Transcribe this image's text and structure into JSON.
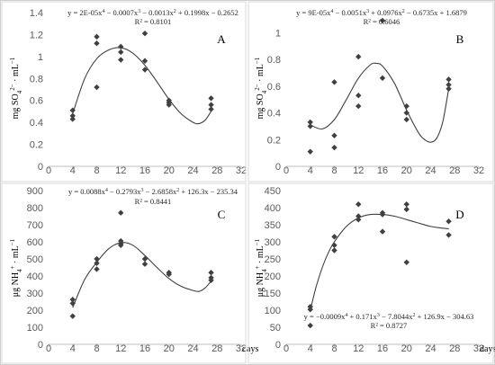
{
  "chart_data": [
    {
      "type": "scatter",
      "panel_label": "A",
      "ylabel": "mg SO42− · mL−1",
      "ylabel_parts": [
        "mg SO",
        "4",
        "2−",
        " · mL",
        "−1"
      ],
      "xlabel": "",
      "xticks": [
        "0",
        "4",
        "8",
        "12",
        "16",
        "20",
        "24",
        "28",
        "32"
      ],
      "yticks": [
        "0",
        "0.2",
        "0.4",
        "0.6",
        "0.8",
        "1",
        "1.2",
        "1.4"
      ],
      "xlim": [
        0,
        32
      ],
      "ylim": [
        0,
        1.4
      ],
      "equation": "y = 2E-05x4 − 0.0007x3 − 0.0013x2 + 0.1998x − 0.2652",
      "equation_parts": [
        "y = 2E-05x",
        "4",
        " − 0.0007x",
        "3",
        " − 0.0013x",
        "2",
        " + 0.1998x − 0.2652"
      ],
      "r2": "R² = 0.8101",
      "points": [
        [
          4,
          0.51
        ],
        [
          4,
          0.46
        ],
        [
          4,
          0.43
        ],
        [
          8,
          1.18
        ],
        [
          8,
          1.12
        ],
        [
          8,
          0.72
        ],
        [
          12,
          1.09
        ],
        [
          12,
          1.04
        ],
        [
          12,
          0.97
        ],
        [
          16,
          1.21
        ],
        [
          16,
          0.96
        ],
        [
          16,
          0.88
        ],
        [
          20,
          0.6
        ],
        [
          20,
          0.58
        ],
        [
          20,
          0.56
        ],
        [
          27,
          0.62
        ],
        [
          27,
          0.56
        ],
        [
          27,
          0.52
        ]
      ],
      "trend": {
        "type": "poly4",
        "coefficients": [
          2e-05,
          -0.0007,
          -0.0013,
          0.1998,
          -0.2652
        ],
        "x_range": [
          4,
          27
        ],
        "curve": [
          [
            4,
            0.48
          ],
          [
            6,
            0.8
          ],
          [
            8,
            0.98
          ],
          [
            10,
            1.06
          ],
          [
            12,
            1.08
          ],
          [
            14,
            1.03
          ],
          [
            16,
            0.92
          ],
          [
            18,
            0.77
          ],
          [
            20,
            0.61
          ],
          [
            22,
            0.48
          ],
          [
            24,
            0.4
          ],
          [
            25,
            0.39
          ],
          [
            26,
            0.42
          ],
          [
            27,
            0.5
          ]
        ]
      }
    },
    {
      "type": "scatter",
      "panel_label": "B",
      "ylabel": "mg SO42− · mL−1",
      "ylabel_parts": [
        "mg SO",
        "4",
        "2−",
        " · mL",
        "−1"
      ],
      "xlabel": "",
      "xticks": [
        "0",
        "4",
        "8",
        "12",
        "16",
        "20",
        "24",
        "28",
        "32"
      ],
      "yticks": [
        "0",
        "0.2",
        "0.4",
        "0.6",
        "0.8",
        "1"
      ],
      "xlim": [
        0,
        32
      ],
      "ylim": [
        0,
        1.15
      ],
      "equation": "y = 9E-05x4 − 0.0051x3 + 0.0976x2 − 0.6735x + 1.6879",
      "equation_parts": [
        "y = 9E-05x",
        "4",
        " − 0.0051x",
        "3",
        " + 0.0976x",
        "2",
        " − 0.6735x + 1.6879"
      ],
      "r2": "R² = 0.6046",
      "points": [
        [
          4,
          0.33
        ],
        [
          4,
          0.3
        ],
        [
          4,
          0.11
        ],
        [
          8,
          0.63
        ],
        [
          8,
          0.23
        ],
        [
          8,
          0.14
        ],
        [
          12,
          0.82
        ],
        [
          12,
          0.53
        ],
        [
          12,
          0.45
        ],
        [
          16,
          1.09
        ],
        [
          16,
          0.66
        ],
        [
          20,
          0.45
        ],
        [
          20,
          0.4
        ],
        [
          20,
          0.35
        ],
        [
          27,
          0.65
        ],
        [
          27,
          0.61
        ],
        [
          27,
          0.58
        ]
      ],
      "trend": {
        "type": "poly4",
        "coefficients": [
          9e-05,
          -0.0051,
          0.0976,
          -0.6735,
          1.6879
        ],
        "x_range": [
          4,
          27
        ],
        "curve": [
          [
            4,
            0.31
          ],
          [
            6,
            0.28
          ],
          [
            8,
            0.35
          ],
          [
            10,
            0.5
          ],
          [
            12,
            0.66
          ],
          [
            14,
            0.76
          ],
          [
            15,
            0.77
          ],
          [
            16,
            0.75
          ],
          [
            18,
            0.62
          ],
          [
            20,
            0.42
          ],
          [
            22,
            0.25
          ],
          [
            23,
            0.2
          ],
          [
            24,
            0.18
          ],
          [
            25,
            0.21
          ],
          [
            26,
            0.33
          ],
          [
            27,
            0.58
          ]
        ]
      }
    },
    {
      "type": "scatter",
      "panel_label": "C",
      "ylabel": "μg NH4+ · mL−1",
      "ylabel_parts": [
        "μg NH",
        "4",
        "+",
        " · mL",
        "−1"
      ],
      "xlabel": "days",
      "xticks": [
        "0",
        "4",
        "8",
        "12",
        "16",
        "20",
        "24",
        "28",
        "32"
      ],
      "yticks": [
        "0",
        "100",
        "200",
        "300",
        "400",
        "500",
        "600",
        "700",
        "800",
        "900"
      ],
      "xlim": [
        0,
        32
      ],
      "ylim": [
        0,
        900
      ],
      "equation": "y = 0.0088x4 − 0.2793x3 − 2.6858x2 + 126.3x − 235.34",
      "equation_parts": [
        "y = 0.0088x",
        "4",
        " − 0.2793x",
        "3",
        " − 2.6858x",
        "2",
        " + 126.3x − 235.34"
      ],
      "r2": "R² = 0.8441",
      "points": [
        [
          4,
          262
        ],
        [
          4,
          240
        ],
        [
          4,
          165
        ],
        [
          8,
          500
        ],
        [
          8,
          475
        ],
        [
          8,
          440
        ],
        [
          12,
          770
        ],
        [
          12,
          605
        ],
        [
          12,
          590
        ],
        [
          12,
          580
        ],
        [
          16,
          500
        ],
        [
          16,
          470
        ],
        [
          20,
          420
        ],
        [
          20,
          410
        ],
        [
          27,
          420
        ],
        [
          27,
          390
        ],
        [
          27,
          375
        ]
      ],
      "trend": {
        "type": "poly4",
        "coefficients": [
          0.0088,
          -0.2793,
          -2.6858,
          126.3,
          -235.34
        ],
        "x_range": [
          4,
          27
        ],
        "curve": [
          [
            4,
            215
          ],
          [
            6,
            380
          ],
          [
            8,
            480
          ],
          [
            10,
            560
          ],
          [
            12,
            595
          ],
          [
            14,
            580
          ],
          [
            16,
            520
          ],
          [
            18,
            450
          ],
          [
            20,
            385
          ],
          [
            22,
            340
          ],
          [
            24,
            315
          ],
          [
            25,
            310
          ],
          [
            26,
            330
          ],
          [
            27,
            370
          ]
        ]
      }
    },
    {
      "type": "scatter",
      "panel_label": "D",
      "ylabel": "μg NH4+ · mL−1",
      "ylabel_parts": [
        "μg NH",
        "4",
        "+",
        " · mL",
        "−1"
      ],
      "xlabel": "days",
      "xticks": [
        "0",
        "4",
        "8",
        "12",
        "16",
        "20",
        "24",
        "28",
        "32"
      ],
      "yticks": [
        "0",
        "50",
        "100",
        "150",
        "200",
        "250",
        "300",
        "350",
        "400",
        "450"
      ],
      "xlim": [
        0,
        32
      ],
      "ylim": [
        0,
        450
      ],
      "equation": "y = −0.0009x4 + 0.171x3 − 7.8044x2 + 126.9x − 304.63",
      "equation_parts": [
        "y = −0.0009x",
        "4",
        " + 0.171x",
        "3",
        " − 7.8044x",
        "2",
        " + 126.9x − 304.63"
      ],
      "r2": "R² = 0.8727",
      "points": [
        [
          4,
          110
        ],
        [
          4,
          102
        ],
        [
          4,
          55
        ],
        [
          8,
          315
        ],
        [
          8,
          290
        ],
        [
          8,
          275
        ],
        [
          12,
          410
        ],
        [
          12,
          375
        ],
        [
          12,
          365
        ],
        [
          16,
          385
        ],
        [
          16,
          380
        ],
        [
          16,
          330
        ],
        [
          20,
          410
        ],
        [
          20,
          395
        ],
        [
          20,
          240
        ],
        [
          27,
          360
        ],
        [
          27,
          320
        ]
      ],
      "trend": {
        "type": "poly4",
        "coefficients": [
          -0.0009,
          0.171,
          -7.8044,
          126.9,
          -304.63
        ],
        "x_range": [
          4,
          27
        ],
        "curve": [
          [
            4,
            100
          ],
          [
            5,
            170
          ],
          [
            6,
            225
          ],
          [
            7,
            268
          ],
          [
            8,
            300
          ],
          [
            10,
            345
          ],
          [
            12,
            370
          ],
          [
            14,
            380
          ],
          [
            16,
            380
          ],
          [
            18,
            375
          ],
          [
            20,
            365
          ],
          [
            22,
            355
          ],
          [
            24,
            345
          ],
          [
            26,
            340
          ],
          [
            27,
            338
          ]
        ]
      }
    }
  ]
}
